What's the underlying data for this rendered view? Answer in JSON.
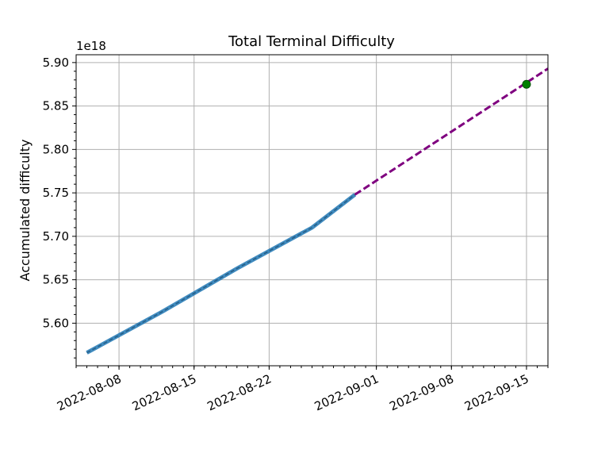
{
  "chart_data": {
    "type": "line",
    "title": "Total Terminal Difficulty",
    "ylabel": "Accumulated difficulty",
    "xlabel": "",
    "y_offset_label": "1e18",
    "x_scale": "date",
    "xlim": [
      "2022-08-04",
      "2022-09-17"
    ],
    "ylim": [
      5.551,
      5.909
    ],
    "grid": true,
    "x_tick_values": [
      "2022-08-08",
      "2022-08-15",
      "2022-08-22",
      "2022-09-01",
      "2022-09-08",
      "2022-09-15"
    ],
    "x_tick_labels": [
      "2022-08-08",
      "2022-08-15",
      "2022-08-22",
      "2022-09-01",
      "2022-09-08",
      "2022-09-15"
    ],
    "y_tick_values": [
      5.6,
      5.65,
      5.7,
      5.75,
      5.8,
      5.85,
      5.9
    ],
    "y_tick_labels": [
      "5.60",
      "5.65",
      "5.70",
      "5.75",
      "5.80",
      "5.85",
      "5.90"
    ],
    "series": [
      {
        "style": "solid",
        "color": "#1f77b4",
        "points": [
          {
            "x": "2022-08-05",
            "y": 5.566
          },
          {
            "x": "2022-08-12",
            "y": 5.613
          },
          {
            "x": "2022-08-19",
            "y": 5.663
          },
          {
            "x": "2022-08-26",
            "y": 5.71
          },
          {
            "x": "2022-08-30",
            "y": 5.748
          }
        ]
      },
      {
        "style": "dashed",
        "color": "#7f007f",
        "points": [
          {
            "x": "2022-08-30",
            "y": 5.748
          },
          {
            "x": "2022-09-17",
            "y": 5.893
          }
        ]
      },
      {
        "style": "marker",
        "color": "#008000",
        "points": [
          {
            "x": "2022-09-15",
            "y": 5.875
          }
        ]
      }
    ]
  }
}
